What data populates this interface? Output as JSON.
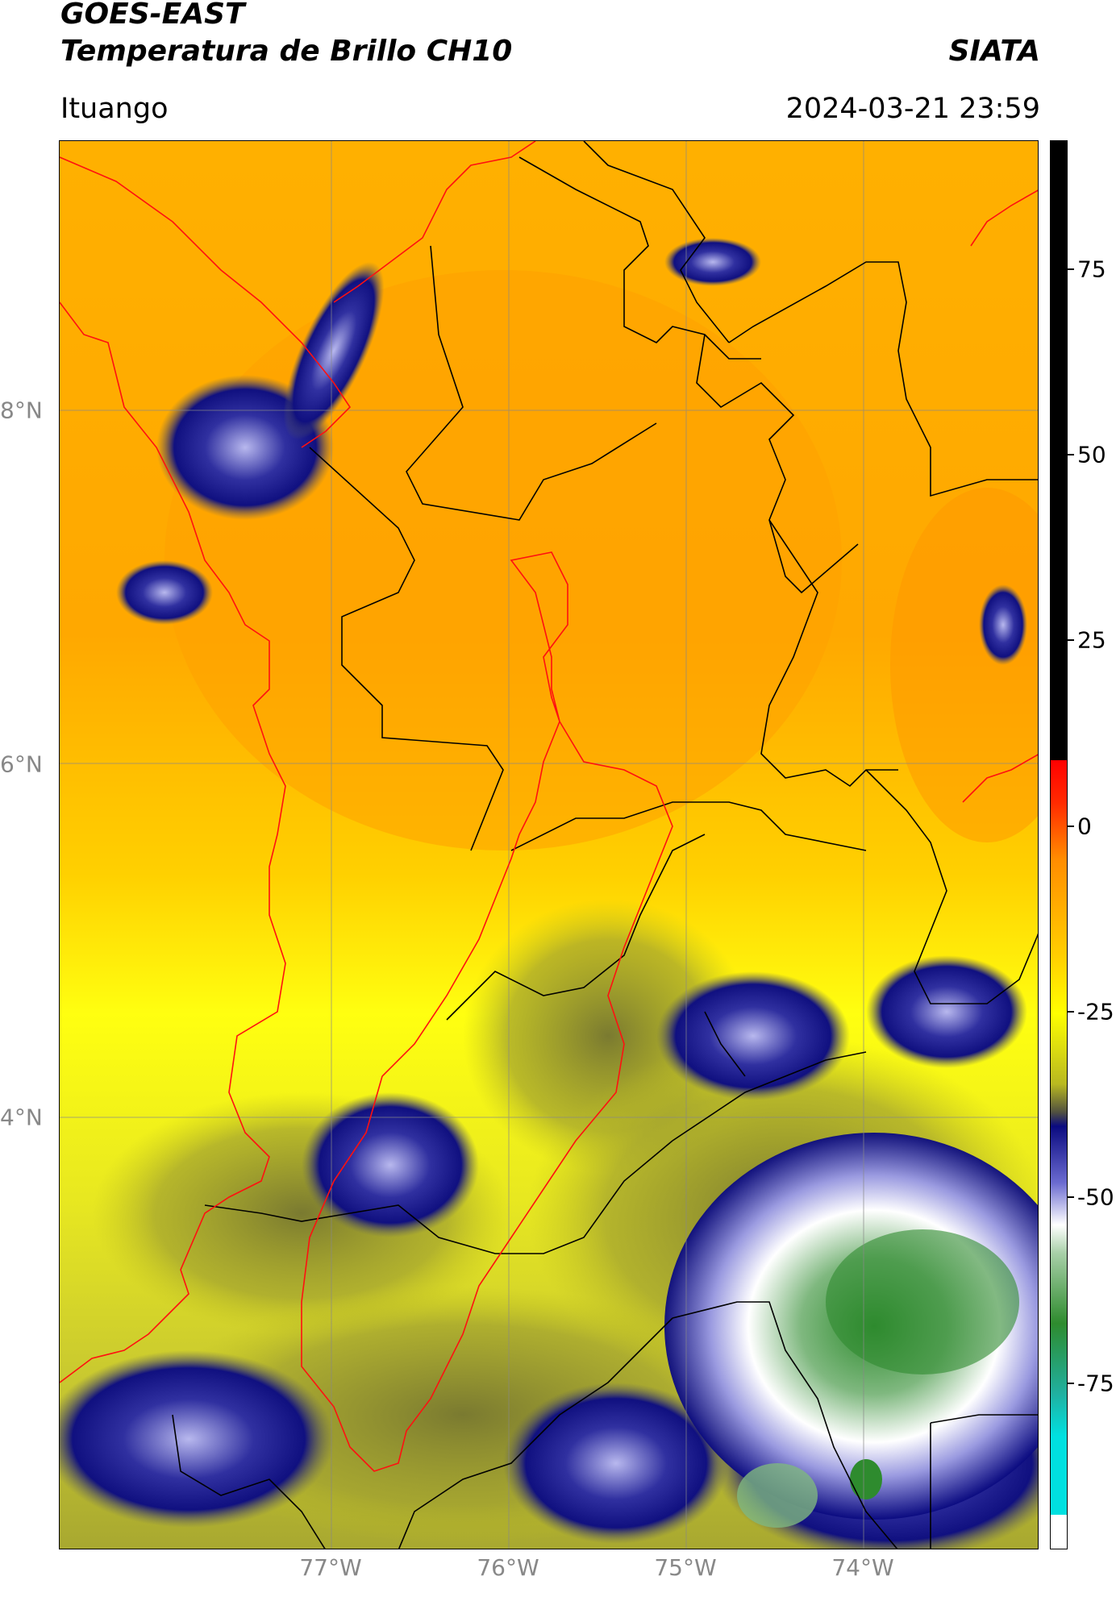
{
  "header": {
    "title_line1": "GOES-EAST",
    "title_line2": "Temperatura de Brillo CH10",
    "brand": "SIATA",
    "region": "Ituango",
    "timestamp": "2024-03-21 23:59"
  },
  "map": {
    "lat_labels": [
      "8°N",
      "6°N",
      "4°N"
    ],
    "lon_labels": [
      "77°W",
      "76°W",
      "75°W",
      "74°W"
    ],
    "basin_outline_color": "#ff0000",
    "boundary_color": "#000000",
    "gridline_color": "#888888"
  },
  "colorbar": {
    "tick_labels": [
      "75",
      "50",
      "25",
      "0",
      "-25",
      "-50",
      "-75"
    ],
    "ticks": [
      75,
      50,
      25,
      0,
      -25,
      -50,
      -75
    ],
    "range": [
      -90,
      90
    ],
    "colors": {
      "warm_black": "#000000",
      "red": "#ff0000",
      "orange": "#ff8c00",
      "yellow": "#ffff00",
      "olive": "#b8b820",
      "navy": "#0a0a80",
      "lavender": "#b0b0e8",
      "white": "#ffffff",
      "green": "#2e8b2e",
      "cyan": "#00e0e0"
    }
  }
}
